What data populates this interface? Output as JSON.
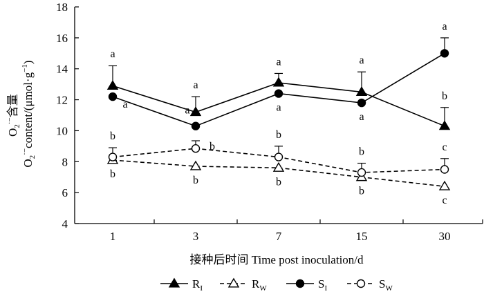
{
  "chart_data": {
    "type": "line",
    "categories": [
      "1",
      "3",
      "7",
      "15",
      "30"
    ],
    "xlabel": "接种后时间 Time post inoculation/d",
    "ylabel_cn": "含量",
    "ylabel_en_prefix": "content/",
    "ylabel_unit": "(μmol·g",
    "ylabel_unit_end": ")",
    "ylabel_unit_sup": "−1",
    "ylabel_chem": "O",
    "ylabel_chem_sub": "2",
    "ylabel_chem_sup": "·−",
    "ylim": [
      4,
      18
    ],
    "yticks": [
      4,
      6,
      8,
      10,
      12,
      14,
      16,
      18
    ],
    "grid": false,
    "legend_position": "bottom",
    "series": [
      {
        "name": "R",
        "subscript": "I",
        "line": "solid",
        "marker": "triangle-filled",
        "values": [
          12.9,
          11.2,
          13.1,
          12.5,
          10.3
        ],
        "errors": [
          1.3,
          1.0,
          0.6,
          1.3,
          1.2
        ],
        "sig_letters": [
          "a",
          "a",
          "a",
          "a",
          "b"
        ],
        "sig_above": [
          true,
          true,
          true,
          true,
          true
        ]
      },
      {
        "name": "R",
        "subscript": "W",
        "line": "dashed",
        "marker": "triangle-open",
        "values": [
          8.1,
          7.7,
          7.6,
          7.0,
          6.4
        ],
        "errors": [
          0.0,
          0.0,
          0.0,
          0.0,
          0.0
        ],
        "sig_letters": [
          "b",
          "b",
          "b",
          "b",
          "c"
        ],
        "sig_above": [
          false,
          false,
          false,
          false,
          false
        ]
      },
      {
        "name": "S",
        "subscript": "I",
        "line": "solid",
        "marker": "circle-filled",
        "values": [
          12.2,
          10.3,
          12.4,
          11.8,
          15.0
        ],
        "errors": [
          0.0,
          0.0,
          0.0,
          0.0,
          1.0
        ],
        "sig_letters": [
          "a",
          "a",
          "a",
          "a",
          "a"
        ],
        "sig_above": [
          false,
          true,
          false,
          false,
          true
        ]
      },
      {
        "name": "S",
        "subscript": "W",
        "line": "dashed",
        "marker": "circle-open",
        "values": [
          8.3,
          8.85,
          8.3,
          7.3,
          7.5
        ],
        "errors": [
          0.6,
          0.5,
          0.7,
          0.6,
          0.7
        ],
        "sig_letters": [
          "b",
          "b",
          "b",
          "b",
          "c"
        ],
        "sig_above": [
          true,
          true,
          true,
          true,
          true
        ]
      }
    ]
  }
}
